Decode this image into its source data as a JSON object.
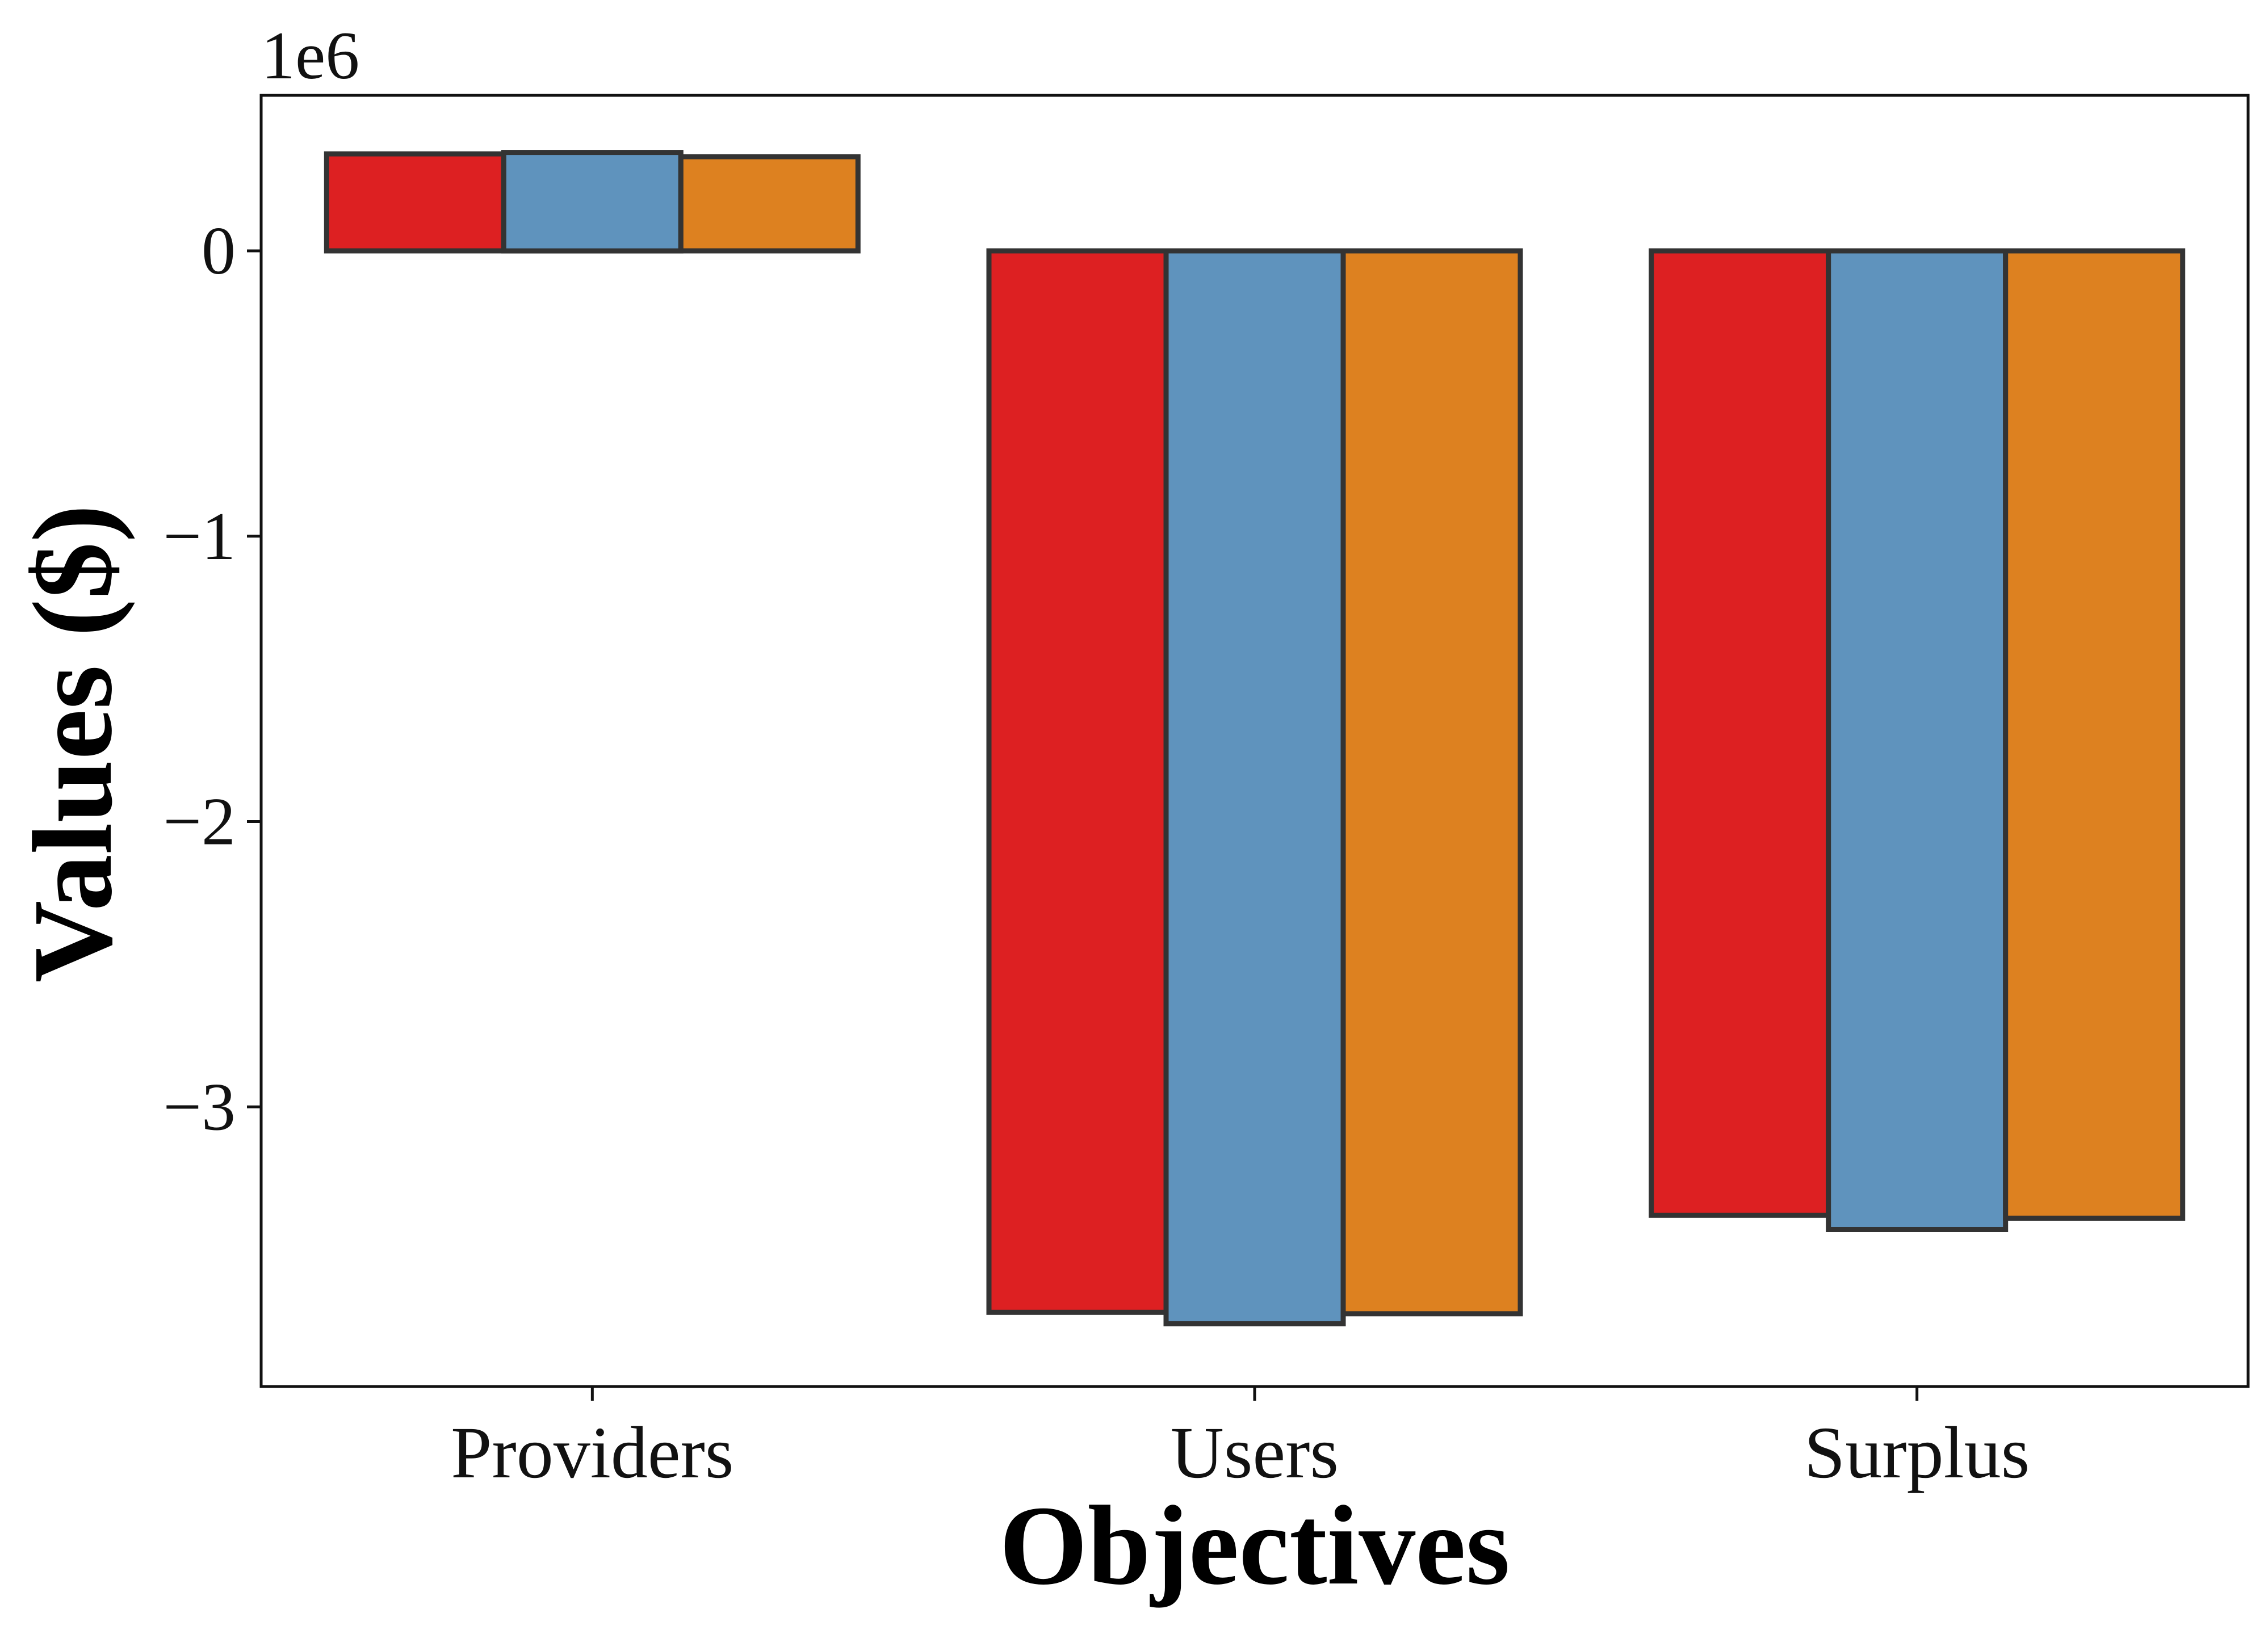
{
  "chart_data": {
    "type": "bar",
    "categories": [
      "Providers",
      "Users",
      "Surplus"
    ],
    "series": [
      {
        "values": [
          340000,
          -3720000,
          -3380000
        ],
        "color": "#dd2022"
      },
      {
        "values": [
          345000,
          -3760000,
          -3430000
        ],
        "color": "#5f93bd"
      },
      {
        "values": [
          330000,
          -3725000,
          -3390000
        ],
        "color": "#dd8120"
      }
    ],
    "scale_label": "1e6",
    "scale_factor": 1000000,
    "xlabel": "Objectives",
    "ylabel": "Values ($)",
    "ylim": [
      -3.98,
      0.545
    ],
    "yticks": [
      {
        "value": 0,
        "label": "0"
      },
      {
        "value": -1,
        "label": "−1"
      },
      {
        "value": -2,
        "label": "−2"
      },
      {
        "value": -3,
        "label": "−3"
      }
    ],
    "grid": false,
    "legend": "none",
    "bar_edge_color": "#333333"
  }
}
